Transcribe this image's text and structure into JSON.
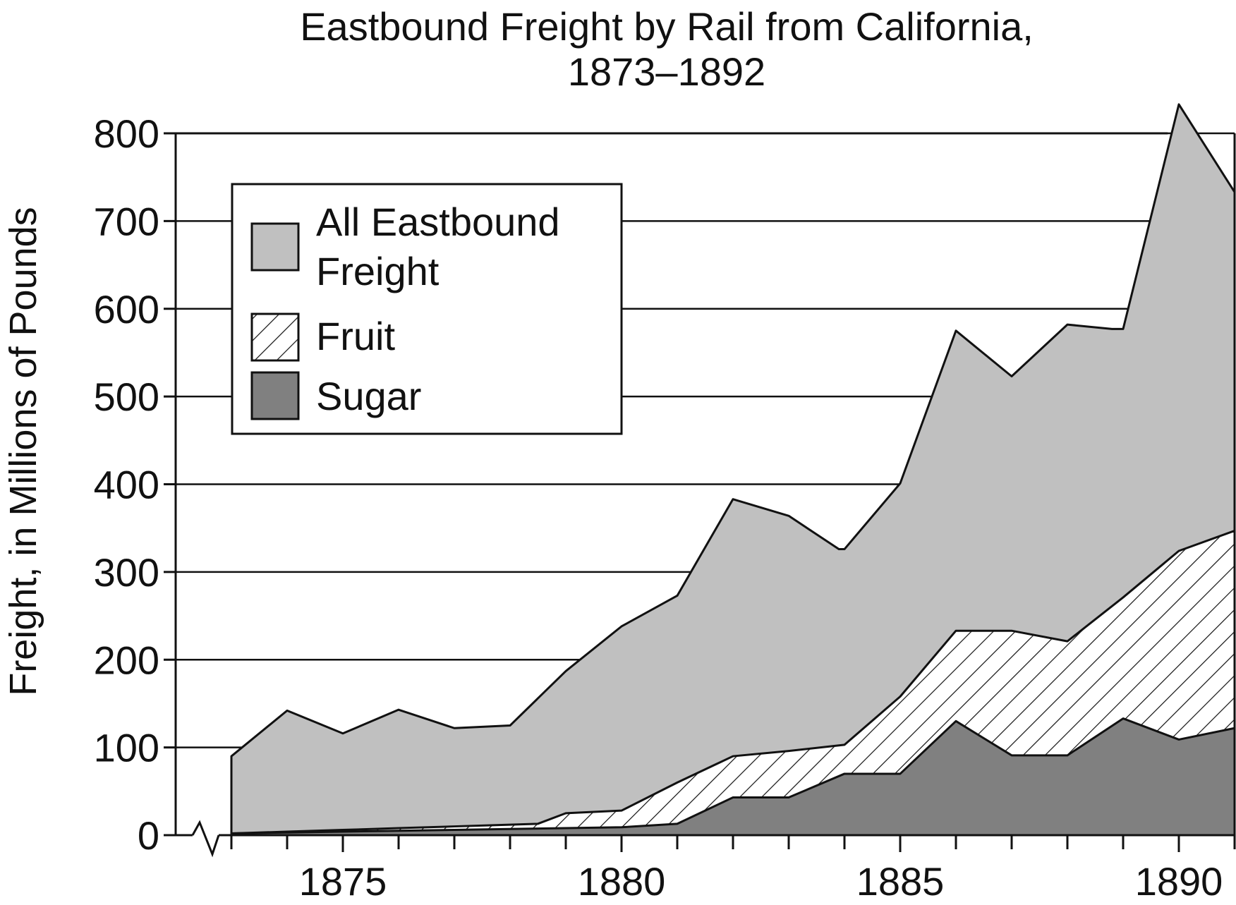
{
  "chart_data": {
    "type": "area",
    "title": "Eastbound Freight by Rail from California,",
    "subtitle": "1873–1892",
    "ylabel": "Freight, in Millions of Pounds",
    "xlabel": "",
    "xlim": [
      1872,
      1891
    ],
    "ylim": [
      0,
      800
    ],
    "x_ticks": [
      1875,
      1880,
      1885,
      1890
    ],
    "y_ticks": [
      0,
      100,
      200,
      300,
      400,
      500,
      600,
      700,
      800
    ],
    "grid": "horizontal",
    "legend_position": "top-left",
    "colors": {
      "all_freight": "#c0c0c0",
      "fruit": "#ffffff",
      "sugar": "#808080",
      "outline": "#111111"
    },
    "series": [
      {
        "name": "All Eastbound Freight",
        "legend_lines": [
          "All Eastbound",
          "Freight"
        ],
        "pattern": "solid-light-gray",
        "x": [
          1873,
          1874,
          1875,
          1876,
          1877,
          1878,
          1879,
          1880,
          1881,
          1882,
          1883,
          1883.9,
          1884,
          1885,
          1886,
          1887,
          1888,
          1888.8,
          1889,
          1890,
          1891
        ],
        "values": [
          90,
          142,
          116,
          143,
          122,
          125,
          187,
          238,
          273,
          383,
          364,
          326,
          326,
          401,
          575,
          523,
          582,
          577,
          577,
          833,
          733
        ]
      },
      {
        "name": "Fruit",
        "legend_lines": [
          "Fruit"
        ],
        "pattern": "diagonal-hatch",
        "x": [
          1873,
          1874,
          1875,
          1876,
          1877,
          1878,
          1878.5,
          1879,
          1880,
          1881,
          1882,
          1883,
          1884,
          1885,
          1886,
          1887,
          1888,
          1889,
          1890,
          1891
        ],
        "values": [
          2,
          4,
          6,
          8,
          10,
          12,
          13,
          25,
          28,
          60,
          90,
          96,
          103,
          158,
          233,
          233,
          221,
          271,
          324,
          347
        ]
      },
      {
        "name": "Sugar",
        "legend_lines": [
          "Sugar"
        ],
        "pattern": "solid-dark-gray",
        "x": [
          1873,
          1874,
          1875,
          1876,
          1877,
          1878,
          1879,
          1880,
          1881,
          1882,
          1883,
          1884,
          1885,
          1886,
          1887,
          1888,
          1889,
          1890,
          1891
        ],
        "values": [
          2,
          3,
          4,
          5,
          6,
          7,
          8,
          9,
          13,
          43,
          43,
          70,
          70,
          130,
          91,
          91,
          133,
          109,
          122
        ]
      }
    ]
  }
}
